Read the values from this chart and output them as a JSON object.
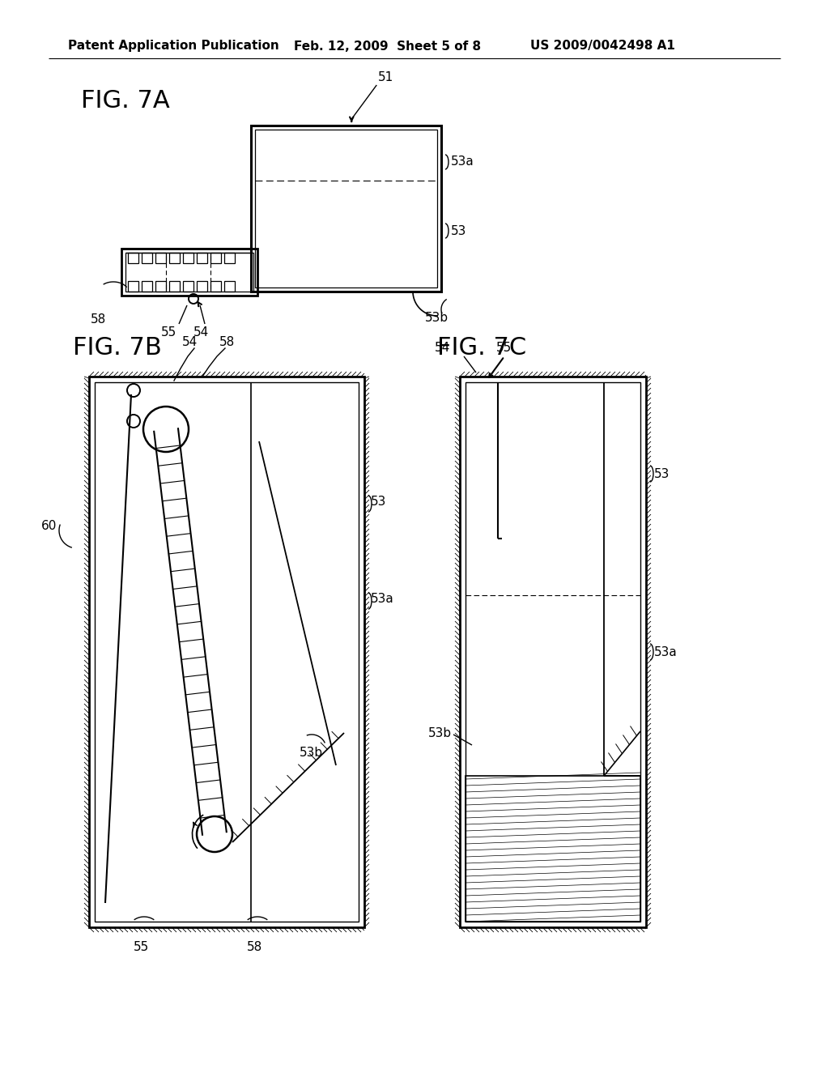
{
  "bg_color": "#ffffff",
  "line_color": "#000000",
  "header_left": "Patent Application Publication",
  "header_mid": "Feb. 12, 2009  Sheet 5 of 8",
  "header_right": "US 2009/0042498 A1"
}
